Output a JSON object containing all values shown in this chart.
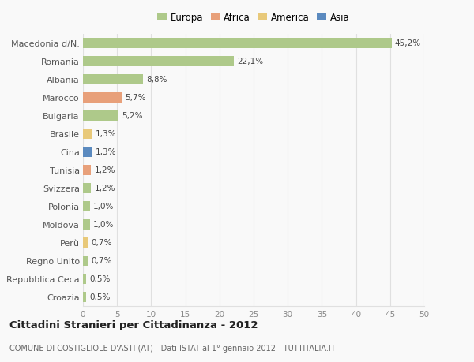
{
  "categories": [
    "Macedonia d/N.",
    "Romania",
    "Albania",
    "Marocco",
    "Bulgaria",
    "Brasile",
    "Cina",
    "Tunisia",
    "Svizzera",
    "Polonia",
    "Moldova",
    "Perù",
    "Regno Unito",
    "Repubblica Ceca",
    "Croazia"
  ],
  "values": [
    45.2,
    22.1,
    8.8,
    5.7,
    5.2,
    1.3,
    1.3,
    1.2,
    1.2,
    1.0,
    1.0,
    0.7,
    0.7,
    0.5,
    0.5
  ],
  "labels": [
    "45,2%",
    "22,1%",
    "8,8%",
    "5,7%",
    "5,2%",
    "1,3%",
    "1,3%",
    "1,2%",
    "1,2%",
    "1,0%",
    "1,0%",
    "0,7%",
    "0,7%",
    "0,5%",
    "0,5%"
  ],
  "colors": [
    "#aec98a",
    "#aec98a",
    "#aec98a",
    "#e8a07a",
    "#aec98a",
    "#e8c97a",
    "#5b8abf",
    "#e8a07a",
    "#aec98a",
    "#aec98a",
    "#aec98a",
    "#e8c97a",
    "#aec98a",
    "#aec98a",
    "#aec98a"
  ],
  "legend_labels": [
    "Europa",
    "Africa",
    "America",
    "Asia"
  ],
  "legend_colors": [
    "#aec98a",
    "#e8a07a",
    "#e8c97a",
    "#5b8abf"
  ],
  "title": "Cittadini Stranieri per Cittadinanza - 2012",
  "subtitle": "COMUNE DI COSTIGLIOLE D'ASTI (AT) - Dati ISTAT al 1° gennaio 2012 - TUTTITALIA.IT",
  "xlim": [
    0,
    50
  ],
  "xticks": [
    0,
    5,
    10,
    15,
    20,
    25,
    30,
    35,
    40,
    45,
    50
  ],
  "background_color": "#f9f9f9",
  "grid_color": "#e0e0e0"
}
